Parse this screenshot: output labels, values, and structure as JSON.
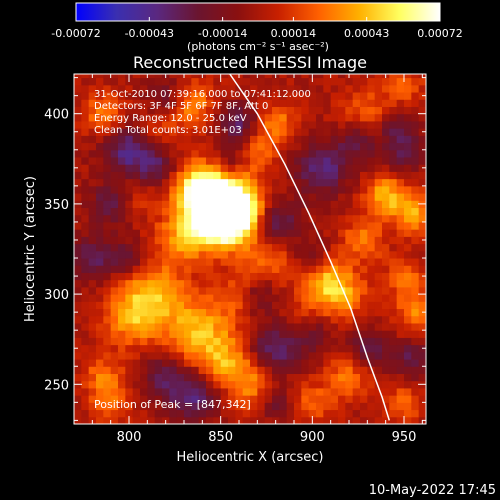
{
  "chart_data": {
    "type": "heatmap",
    "title": "Reconstructed RHESSI Image",
    "xlabel": "Heliocentric X (arcsec)",
    "ylabel": "Heliocentric Y (arcsec)",
    "xlim": [
      770,
      962
    ],
    "ylim": [
      228,
      422
    ],
    "x_ticks": [
      800,
      850,
      900,
      950
    ],
    "y_ticks": [
      250,
      300,
      350,
      400
    ],
    "colorbar": {
      "range": [
        -0.00072,
        0.00072
      ],
      "tick_labels": [
        "-0.00072",
        "-0.00043",
        "-0.00014",
        "0.00014",
        "0.00043",
        "0.00072"
      ],
      "tick_values": [
        -0.00072,
        -0.00043,
        -0.00014,
        0.00014,
        0.00043,
        0.00072
      ],
      "unit": "(photons cm⁻² s⁻¹ asec⁻²)",
      "colors": [
        "#0000ff",
        "#3a2fb0",
        "#5a2880",
        "#6a1530",
        "#8a1010",
        "#c82000",
        "#ff6000",
        "#ffb000",
        "#ffff60",
        "#ffffff"
      ]
    },
    "annotations": [
      "31-Oct-2010 07:39:16.000 to 07:41:12.000",
      "Detectors: 3F 4F 5F 6F 7F 8F, Att 0",
      "Energy Range: 12.0 - 25.0 keV",
      "Clean     Total counts: 3.01E+03"
    ],
    "peak_label": "Position of Peak = [847,342]",
    "peak": [
      847,
      342
    ],
    "limb_curve": [
      [
        855,
        422
      ],
      [
        870,
        400
      ],
      [
        885,
        372
      ],
      [
        898,
        345
      ],
      [
        910,
        318
      ],
      [
        921,
        292
      ],
      [
        930,
        265
      ],
      [
        938,
        243
      ],
      [
        942,
        230
      ]
    ],
    "hotspots": [
      [
        850,
        350,
        14,
        0.00072
      ],
      [
        848,
        340,
        9,
        0.00055
      ],
      [
        860,
        345,
        9,
        0.00055
      ],
      [
        838,
        358,
        10,
        0.00045
      ],
      [
        828,
        330,
        10,
        0.0003
      ],
      [
        812,
        300,
        12,
        0.00042
      ],
      [
        800,
        285,
        10,
        0.0003
      ],
      [
        838,
        280,
        14,
        0.0004
      ],
      [
        852,
        262,
        10,
        0.00032
      ],
      [
        868,
        250,
        10,
        0.0003
      ],
      [
        875,
        320,
        10,
        0.00025
      ],
      [
        905,
        310,
        9,
        0.0003
      ],
      [
        915,
        300,
        10,
        0.00038
      ],
      [
        928,
        330,
        8,
        0.0003
      ],
      [
        940,
        355,
        8,
        0.0004
      ],
      [
        955,
        345,
        8,
        0.00036
      ],
      [
        958,
        290,
        9,
        0.00032
      ],
      [
        950,
        310,
        7,
        0.00028
      ],
      [
        786,
        400,
        8,
        0.0003
      ],
      [
        786,
        255,
        8,
        0.00025
      ],
      [
        790,
        240,
        8,
        0.00022
      ],
      [
        880,
        395,
        8,
        0.0003
      ],
      [
        870,
        380,
        8,
        0.00022
      ],
      [
        835,
        405,
        9,
        0.0003
      ],
      [
        930,
        400,
        10,
        0.00025
      ],
      [
        950,
        415,
        8,
        0.0002
      ],
      [
        920,
        255,
        9,
        0.00028
      ],
      [
        950,
        240,
        7,
        0.00025
      ],
      [
        900,
        240,
        8,
        0.00022
      ],
      [
        815,
        390,
        8,
        0.00018
      ],
      [
        805,
        355,
        7,
        0.00016
      ],
      [
        895,
        285,
        8,
        0.00024
      ],
      [
        860,
        300,
        8,
        0.0002
      ]
    ],
    "coldspots": [
      [
        800,
        380,
        10,
        -0.0004
      ],
      [
        815,
        370,
        8,
        -0.0003
      ],
      [
        860,
        395,
        8,
        -0.00035
      ],
      [
        880,
        340,
        9,
        -0.00038
      ],
      [
        880,
        270,
        10,
        -0.0004
      ],
      [
        900,
        280,
        8,
        -0.0003
      ],
      [
        905,
        370,
        10,
        -0.0004
      ],
      [
        925,
        385,
        8,
        -0.0003
      ],
      [
        950,
        380,
        8,
        -0.0003
      ],
      [
        780,
        320,
        8,
        -0.00035
      ],
      [
        790,
        350,
        8,
        -0.0003
      ],
      [
        835,
        245,
        10,
        -0.0004
      ],
      [
        818,
        255,
        8,
        -0.0003
      ],
      [
        870,
        300,
        7,
        -0.00025
      ],
      [
        930,
        270,
        8,
        -0.00032
      ],
      [
        955,
        265,
        8,
        -0.00028
      ],
      [
        855,
        375,
        7,
        -0.00025
      ],
      [
        900,
        320,
        7,
        -0.00022
      ],
      [
        800,
        320,
        7,
        -0.00028
      ],
      [
        945,
        395,
        7,
        -0.00025
      ],
      [
        880,
        240,
        7,
        -0.00025
      ],
      [
        820,
        410,
        7,
        -0.00022
      ]
    ]
  },
  "footer": {
    "date": "10-May-2022 17:45"
  }
}
